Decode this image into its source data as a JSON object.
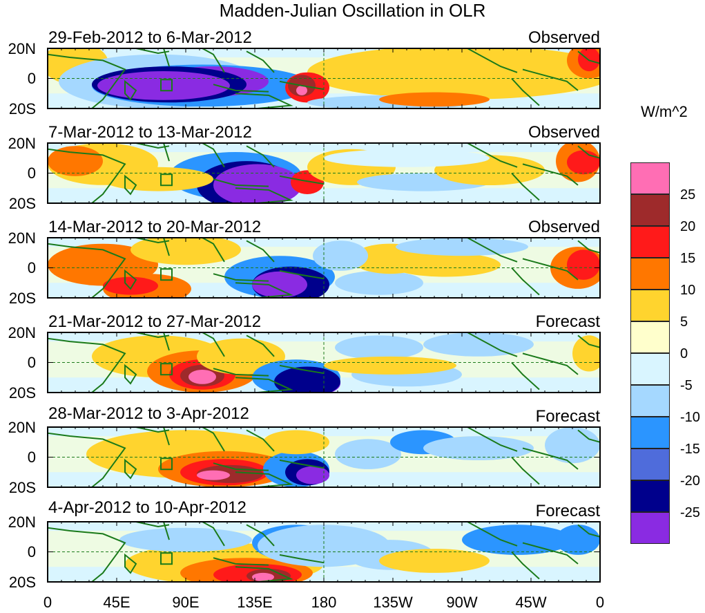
{
  "title": "Madden-Julian Oscillation in OLR",
  "units": "W/m^2",
  "latitude_labels": [
    "20N",
    "0",
    "20S"
  ],
  "longitude_labels": [
    "0",
    "45E",
    "90E",
    "135E",
    "180",
    "135W",
    "90W",
    "45W",
    "0"
  ],
  "panels": [
    {
      "date_range": "29-Feb-2012 to 6-Mar-2012",
      "status": "Observed"
    },
    {
      "date_range": "7-Mar-2012 to 13-Mar-2012",
      "status": "Observed"
    },
    {
      "date_range": "14-Mar-2012 to 20-Mar-2012",
      "status": "Observed"
    },
    {
      "date_range": "21-Mar-2012 to 27-Mar-2012",
      "status": "Forecast"
    },
    {
      "date_range": "28-Mar-2012 to 3-Apr-2012",
      "status": "Forecast"
    },
    {
      "date_range": "4-Apr-2012 to 10-Apr-2012",
      "status": "Forecast"
    }
  ],
  "colorbar": {
    "labels": [
      "25",
      "20",
      "15",
      "10",
      "5",
      "0",
      "-5",
      "-10",
      "-15",
      "-20",
      "-25"
    ],
    "colors": [
      "#ff6eb4",
      "#9e2a2b",
      "#ff1a1a",
      "#ff7700",
      "#ffd42e",
      "#ffffcc",
      "#d9f5ff",
      "#a5d8ff",
      "#2b95ff",
      "#4f6cdb",
      "#00008c",
      "#8a2be2"
    ]
  },
  "colors": {
    "coastline": "#1a7a1a",
    "frame": "#000000"
  }
}
